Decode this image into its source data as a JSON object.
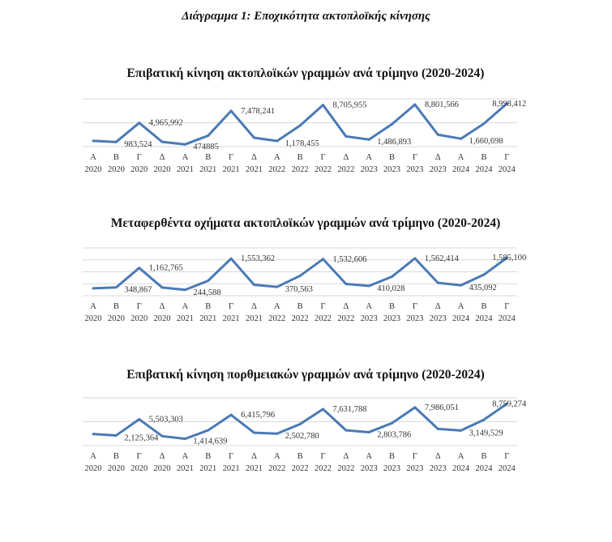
{
  "title": "Διάγραμμα 1: Εποχικότητα ακτοπλοϊκής κίνησης",
  "chart_data": [
    {
      "type": "line",
      "title": "Επιβατική κίνηση ακτοπλοϊκών γραμμών ανά τρίμηνο (2020-2024)",
      "quarters": [
        "Α",
        "Β",
        "Γ",
        "Δ",
        "Α",
        "Β",
        "Γ",
        "Δ",
        "Α",
        "Β",
        "Γ",
        "Δ",
        "Α",
        "Β",
        "Γ",
        "Δ",
        "Α",
        "Β",
        "Γ"
      ],
      "years": [
        "2020",
        "2020",
        "2020",
        "2020",
        "2021",
        "2021",
        "2021",
        "2021",
        "2022",
        "2022",
        "2022",
        "2022",
        "2023",
        "2023",
        "2023",
        "2023",
        "2024",
        "2024",
        "2024"
      ],
      "values": [
        1200000,
        983524,
        4965992,
        1000000,
        474885,
        2300000,
        7478241,
        1860000,
        1178455,
        4400000,
        8705955,
        2150000,
        1486893,
        4700000,
        8801566,
        2500000,
        1660698,
        4800000,
        8998412
      ],
      "labels": [
        "",
        "983,524",
        "4,965,992",
        "",
        "474885",
        "",
        "7,478,241",
        "",
        "1,178,455",
        "",
        "8,705,955",
        "",
        "1,486,893",
        "",
        "8,801,566",
        "",
        "1,660,698",
        "",
        "8,998,412"
      ],
      "ylim": [
        0,
        10000000
      ],
      "gridlines": [
        0,
        5000000,
        10000000
      ],
      "color": "#4a7ab5"
    },
    {
      "type": "line",
      "title": "Μεταφερθέντα οχήματα ακτοπλοϊκών γραμμών ανά τρίμηνο (2020-2024)",
      "quarters": [
        "Α",
        "Β",
        "Γ",
        "Δ",
        "Α",
        "Β",
        "Γ",
        "Δ",
        "Α",
        "Β",
        "Γ",
        "Δ",
        "Α",
        "Β",
        "Γ",
        "Δ",
        "Α",
        "Β",
        "Γ"
      ],
      "years": [
        "2020",
        "2020",
        "2020",
        "2020",
        "2021",
        "2021",
        "2021",
        "2021",
        "2022",
        "2022",
        "2022",
        "2022",
        "2023",
        "2023",
        "2023",
        "2023",
        "2024",
        "2024",
        "2024"
      ],
      "values": [
        308000,
        348867,
        1162765,
        342000,
        244588,
        627000,
        1553362,
        456000,
        370563,
        832000,
        1532606,
        490000,
        410028,
        798000,
        1562414,
        537000,
        435092,
        880000,
        1585100
      ],
      "labels": [
        "",
        "348,867",
        "1,162,765",
        "",
        "244,588",
        "",
        "1,553,362",
        "",
        "370,563",
        "",
        "1,532,606",
        "",
        "410,028",
        "",
        "1,562,414",
        "",
        "435,092",
        "",
        "1,585,100"
      ],
      "ylim": [
        0,
        2000000
      ],
      "gridlines": [
        0,
        500000,
        1000000,
        1500000,
        2000000
      ],
      "color": "#4a7ab5"
    },
    {
      "type": "line",
      "title": "Επιβατική κίνηση πορθμειακών γραμμών ανά τρίμηνο (2020-2024)",
      "quarters": [
        "Α",
        "Β",
        "Γ",
        "Δ",
        "Α",
        "Β",
        "Γ",
        "Δ",
        "Α",
        "Β",
        "Γ",
        "Δ",
        "Α",
        "Β",
        "Γ",
        "Δ",
        "Α",
        "Β",
        "Γ"
      ],
      "years": [
        "2020",
        "2020",
        "2020",
        "2020",
        "2021",
        "2021",
        "2021",
        "2021",
        "2022",
        "2022",
        "2022",
        "2022",
        "2023",
        "2023",
        "2023",
        "2023",
        "2024",
        "2024",
        "2024"
      ],
      "values": [
        2420000,
        2125364,
        5503303,
        1980000,
        1414639,
        3200000,
        6415796,
        2700000,
        2502780,
        4500000,
        7631788,
        3200000,
        2803786,
        4700000,
        7986051,
        3500000,
        3149529,
        5400000,
        8759274
      ],
      "labels": [
        "",
        "2,125,364",
        "5,503,303",
        "",
        "1,414,639",
        "",
        "6,415,796",
        "",
        "2,502,780",
        "",
        "7,631,788",
        "",
        "2,803,786",
        "",
        "7,986,051",
        "",
        "3,149,529",
        "",
        "8,759,274"
      ],
      "ylim": [
        0,
        10000000
      ],
      "gridlines": [
        0,
        5000000,
        10000000
      ],
      "color": "#4a7ab5"
    }
  ]
}
